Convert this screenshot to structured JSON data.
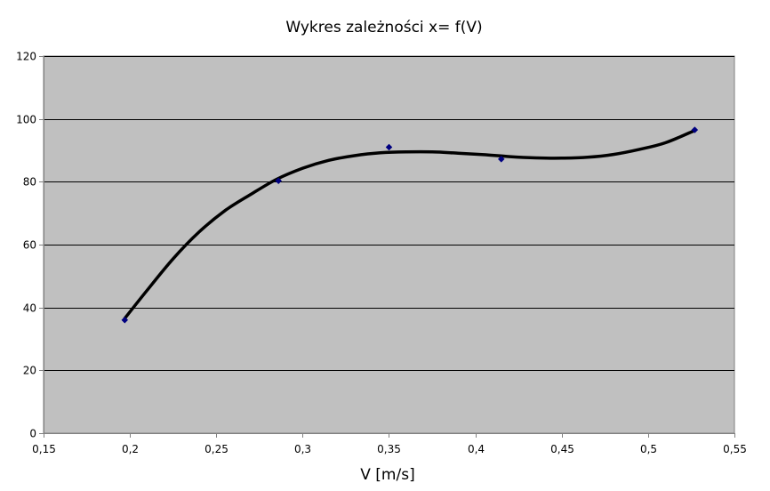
{
  "chart_data": {
    "type": "scatter",
    "title": "Wykres zależności x= f(V)",
    "xlabel": "V [m/s]",
    "ylabel": "",
    "xlim": [
      0.15,
      0.55
    ],
    "ylim": [
      0,
      120
    ],
    "x_ticks": [
      "0,15",
      "0,2",
      "0,25",
      "0,3",
      "0,35",
      "0,4",
      "0,45",
      "0,5",
      "0,55"
    ],
    "y_ticks": [
      "0",
      "20",
      "40",
      "60",
      "80",
      "100",
      "120"
    ],
    "x_tick_values": [
      0.15,
      0.2,
      0.25,
      0.3,
      0.35,
      0.4,
      0.45,
      0.5,
      0.55
    ],
    "y_tick_values": [
      0,
      20,
      40,
      60,
      80,
      100,
      120
    ],
    "grid": "horizontal",
    "legend": "none",
    "series": [
      {
        "points": [
          {
            "x": 0.197,
            "y": 36
          },
          {
            "x": 0.286,
            "y": 80.3
          },
          {
            "x": 0.35,
            "y": 91
          },
          {
            "x": 0.415,
            "y": 87.2
          },
          {
            "x": 0.527,
            "y": 96.5
          }
        ],
        "marker_color": "#000080"
      }
    ],
    "trendline": {
      "points": [
        {
          "x": 0.197,
          "y": 36.5
        },
        {
          "x": 0.21,
          "y": 45.5
        },
        {
          "x": 0.225,
          "y": 55.5
        },
        {
          "x": 0.24,
          "y": 64
        },
        {
          "x": 0.255,
          "y": 70.8
        },
        {
          "x": 0.27,
          "y": 76
        },
        {
          "x": 0.285,
          "y": 80.8
        },
        {
          "x": 0.3,
          "y": 84.3
        },
        {
          "x": 0.315,
          "y": 86.8
        },
        {
          "x": 0.33,
          "y": 88.3
        },
        {
          "x": 0.345,
          "y": 89.2
        },
        {
          "x": 0.36,
          "y": 89.5
        },
        {
          "x": 0.375,
          "y": 89.5
        },
        {
          "x": 0.39,
          "y": 89.1
        },
        {
          "x": 0.405,
          "y": 88.6
        },
        {
          "x": 0.42,
          "y": 88.0
        },
        {
          "x": 0.435,
          "y": 87.6
        },
        {
          "x": 0.45,
          "y": 87.5
        },
        {
          "x": 0.465,
          "y": 87.8
        },
        {
          "x": 0.48,
          "y": 88.7
        },
        {
          "x": 0.495,
          "y": 90.3
        },
        {
          "x": 0.51,
          "y": 92.4
        },
        {
          "x": 0.527,
          "y": 96.3
        }
      ],
      "color": "#000000"
    },
    "colors": {
      "plot_background": "#c0c0c0",
      "gridline": "#000000",
      "axis": "#808080"
    }
  }
}
